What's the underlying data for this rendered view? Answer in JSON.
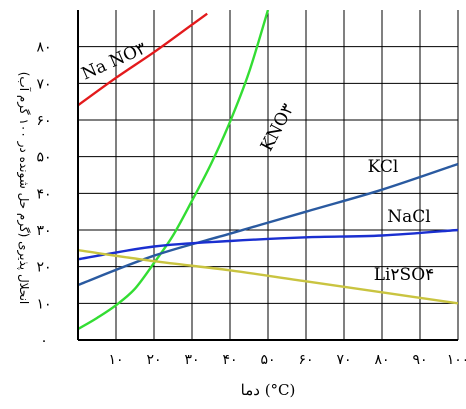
{
  "chart_data": {
    "type": "line",
    "xlabel": "دما (°C)",
    "ylabel": "انحلال پذیری (گرم حل شونده در ۱۰۰ گرم آب)",
    "xlim": [
      0,
      100
    ],
    "ylim": [
      0,
      90
    ],
    "x_ticks": [
      10,
      20,
      30,
      40,
      50,
      60,
      70,
      80,
      90,
      100
    ],
    "y_ticks": [
      0,
      10,
      20,
      30,
      40,
      50,
      60,
      70,
      80
    ],
    "x_tick_labels": [
      "۱۰",
      "۲۰",
      "۳۰",
      "۴۰",
      "۵۰",
      "۶۰",
      "۷۰",
      "۸۰",
      "۹۰",
      "۱۰۰"
    ],
    "y_tick_labels": [
      "۰",
      "۱۰",
      "۲۰",
      "۳۰",
      "۴۰",
      "۵۰",
      "۶۰",
      "۷۰",
      "۸۰"
    ],
    "grid": true,
    "legend": "none",
    "series": [
      {
        "name": "Na NO۳",
        "color": "#e31a1c",
        "x": [
          0,
          10,
          20,
          30,
          34
        ],
        "y": [
          64,
          71.5,
          78.5,
          86,
          89
        ]
      },
      {
        "name": "KNO۳",
        "color": "#33dd33",
        "x": [
          0,
          5,
          10,
          15,
          20,
          25,
          30,
          35,
          40,
          45,
          50
        ],
        "y": [
          3,
          6,
          9.5,
          14,
          21,
          28.5,
          38,
          48,
          59.5,
          73,
          90
        ]
      },
      {
        "name": "KCl",
        "color": "#2a5aa0",
        "x": [
          0,
          20,
          40,
          60,
          80,
          100
        ],
        "y": [
          15,
          23,
          29,
          35,
          41,
          48
        ]
      },
      {
        "name": "NaCl",
        "color": "#1a2fd0",
        "x": [
          0,
          20,
          40,
          60,
          80,
          100
        ],
        "y": [
          22,
          25.5,
          27,
          28,
          28.5,
          30
        ]
      },
      {
        "name": "Li۲SO۴",
        "color": "#c9c440",
        "x": [
          0,
          20,
          40,
          60,
          80,
          100
        ],
        "y": [
          24.5,
          21.5,
          19,
          16,
          13,
          10
        ]
      }
    ]
  }
}
